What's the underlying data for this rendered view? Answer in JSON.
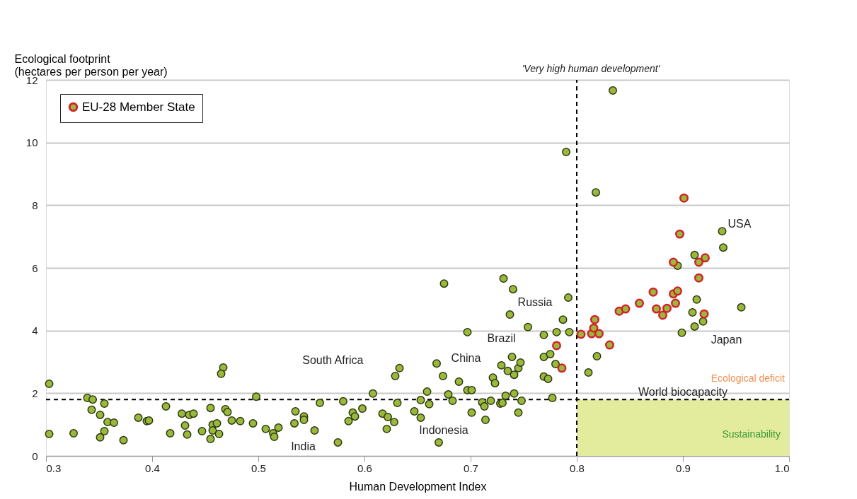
{
  "chart_data": {
    "type": "scatter",
    "xlabel": "Human Development Index",
    "ylabel": "Ecological footprint\n(hectares per person per year)",
    "xlim": [
      0.3,
      1.0
    ],
    "ylim": [
      0,
      12
    ],
    "xticks": [
      0.3,
      0.4,
      0.5,
      0.6,
      0.7,
      0.8,
      0.9,
      {
        "value": 1.0,
        "label": "1.0"
      }
    ],
    "yticks": [
      0,
      2,
      4,
      6,
      8,
      10,
      12
    ],
    "grid": "y",
    "marker": "circle",
    "legend": "top left",
    "series": [
      {
        "color": "#9ab83a",
        "x": [
          0.303,
          0.303,
          0.326,
          0.339,
          0.344,
          0.355,
          0.343,
          0.351,
          0.358,
          0.364,
          0.355,
          0.351,
          0.373,
          0.387,
          0.395,
          0.397,
          0.413,
          0.417,
          0.428,
          0.435,
          0.439,
          0.431,
          0.433,
          0.447,
          0.455,
          0.457,
          0.461,
          0.457,
          0.463,
          0.455,
          0.467,
          0.465,
          0.469,
          0.471,
          0.475,
          0.483,
          0.495,
          0.498,
          0.507,
          0.514,
          0.515,
          0.519,
          0.535,
          0.543,
          0.543,
          0.534,
          0.553,
          0.558,
          0.575,
          0.58,
          0.598,
          0.589,
          0.591,
          0.585,
          0.608,
          0.617,
          0.622,
          0.628,
          0.621,
          0.647,
          0.653,
          0.67,
          0.629,
          0.633,
          0.631,
          0.653,
          0.661,
          0.659,
          0.668,
          0.674,
          0.675,
          0.679,
          0.683,
          0.689,
          0.697,
          0.701,
          0.697,
          0.701,
          0.711,
          0.713,
          0.714,
          0.719,
          0.721,
          0.723,
          0.728,
          0.73,
          0.729,
          0.733,
          0.735,
          0.731,
          0.737,
          0.739,
          0.74,
          0.741,
          0.741,
          0.745,
          0.745,
          0.747,
          0.748,
          0.754,
          0.769,
          0.769,
          0.769,
          0.773,
          0.775,
          0.777,
          0.78,
          0.781,
          0.787,
          0.79,
          0.792,
          0.793,
          0.811,
          0.818,
          0.819,
          0.834,
          0.895,
          0.899,
          0.909,
          0.911,
          0.911,
          0.913,
          0.919,
          0.937,
          0.938,
          0.955
        ],
        "values": [
          2.3,
          0.7,
          0.72,
          1.85,
          1.8,
          1.67,
          1.47,
          1.31,
          1.08,
          1.06,
          0.79,
          0.59,
          0.5,
          1.22,
          1.11,
          1.13,
          1.58,
          0.72,
          1.35,
          1.31,
          1.35,
          0.97,
          0.68,
          0.79,
          1.53,
          0.99,
          1.04,
          0.81,
          0.7,
          0.54,
          2.82,
          2.62,
          1.49,
          1.4,
          1.13,
          1.11,
          1.04,
          1.89,
          0.86,
          0.72,
          0.61,
          0.9,
          1.42,
          1.26,
          1.15,
          1.04,
          0.81,
          1.69,
          0.43,
          1.74,
          1.51,
          1.38,
          1.26,
          1.11,
          1.99,
          1.35,
          1.24,
          1.08,
          0.86,
          1.42,
          1.22,
          0.43,
          2.55,
          2.8,
          1.69,
          1.78,
          1.65,
          2.05,
          2.95,
          2.55,
          5.5,
          1.96,
          1.76,
          2.37,
          2.1,
          2.1,
          3.95,
          1.38,
          1.71,
          1.58,
          1.15,
          1.76,
          2.5,
          2.32,
          1.67,
          1.69,
          2.89,
          1.92,
          2.71,
          5.66,
          4.51,
          3.16,
          5.32,
          1.99,
          2.59,
          2.8,
          1.38,
          2.98,
          1.76,
          4.11,
          3.86,
          3.16,
          2.53,
          2.46,
          3.25,
          1.85,
          2.93,
          3.95,
          4.35,
          9.7,
          5.05,
          3.95,
          2.66,
          8.41,
          3.18,
          11.66,
          6.07,
          3.93,
          4.58,
          6.41,
          4.13,
          4.99,
          4.29,
          7.17,
          6.65,
          4.74
        ]
      },
      {
        "name": "EU-28 Member State",
        "color": "#d2232a",
        "x": [
          0.781,
          0.786,
          0.804,
          0.814,
          0.821,
          0.816,
          0.817,
          0.831,
          0.84,
          0.846,
          0.859,
          0.872,
          0.875,
          0.881,
          0.885,
          0.891,
          0.893,
          0.895,
          0.891,
          0.897,
          0.901,
          0.915,
          0.921,
          0.915,
          0.92
        ],
        "values": [
          3.52,
          2.8,
          3.88,
          3.9,
          3.9,
          4.08,
          4.35,
          3.54,
          4.62,
          4.69,
          4.87,
          5.23,
          4.69,
          4.49,
          4.71,
          5.17,
          4.87,
          5.26,
          6.18,
          7.08,
          8.23,
          6.18,
          6.32,
          5.68,
          4.53
        ]
      }
    ],
    "ref_lines": [
      {
        "axis": "x",
        "value": 0.8,
        "label": "'Very high human development'",
        "line_style": "dashed",
        "color": "#000000"
      },
      {
        "axis": "y",
        "value": 1.8,
        "label": "World biocapacity",
        "line_style": "dashed",
        "color": "#000000"
      }
    ],
    "bands": [
      {
        "axis": "y",
        "from": 0,
        "to": 1.8,
        "label": "Sustainability",
        "color": "#e3eb9c"
      }
    ],
    "annotations": [
      {
        "text": "South Africa",
        "x": 0.629,
        "y": 2.55
      },
      {
        "text": "China",
        "x": 0.701,
        "y": 2.1
      },
      {
        "text": "Brazil",
        "x": 0.729,
        "y": 2.89
      },
      {
        "text": "Russia",
        "x": 0.787,
        "y": 4.35
      },
      {
        "text": "Indonesia",
        "x": 0.628,
        "y": 1.08
      },
      {
        "text": "India",
        "x": 0.553,
        "y": 0.81
      },
      {
        "text": "USA",
        "x": 0.937,
        "y": 7.17
      },
      {
        "text": "Japan",
        "x": 0.911,
        "y": 4.13
      },
      "Ecological deficit"
    ]
  }
}
